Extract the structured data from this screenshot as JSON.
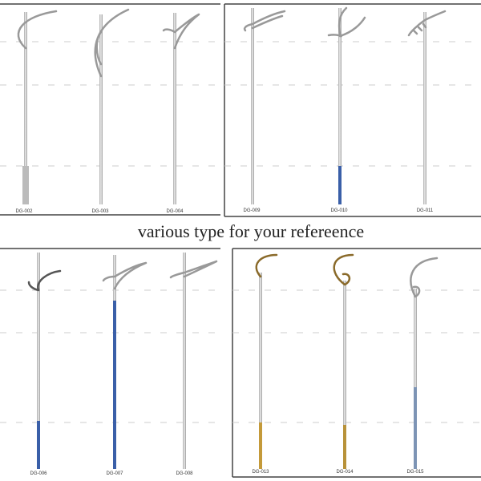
{
  "caption": "various type for your refereence",
  "panels": [
    {
      "labels": [
        "DG-002",
        "DG-003",
        "DG-004"
      ]
    },
    {
      "labels": [
        "DG-009",
        "DG-010",
        "DG-011"
      ]
    },
    {
      "labels": [
        "DG-006",
        "DG-007",
        "DG-008"
      ]
    },
    {
      "labels": [
        "DG-013",
        "DG-014",
        "DG-015"
      ]
    }
  ]
}
